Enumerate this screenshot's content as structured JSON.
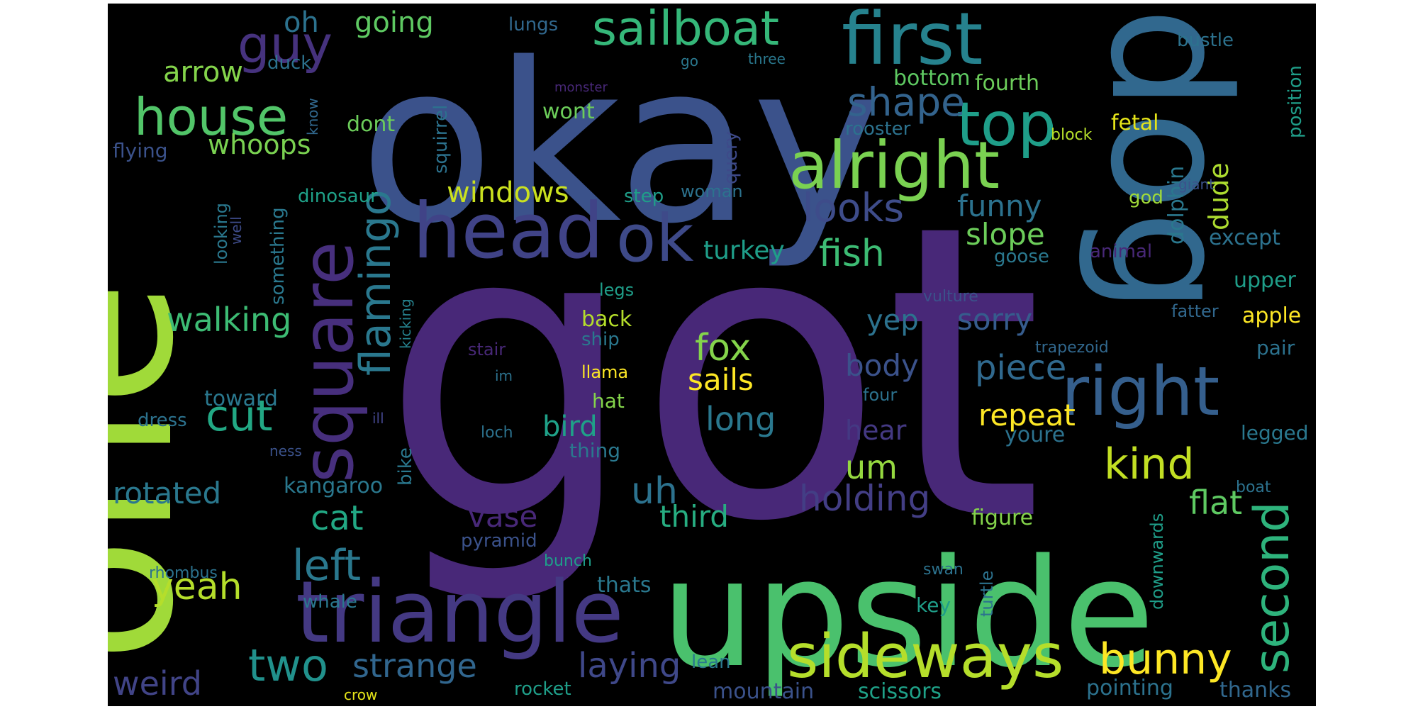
{
  "word_cloud": {
    "words": [
      {
        "text": "got",
        "color": "#482878"
      },
      {
        "text": "okay",
        "color": "#3b528b"
      },
      {
        "text": "one",
        "color": "#a0da39"
      },
      {
        "text": "upside",
        "color": "#4ac16d"
      },
      {
        "text": "dog",
        "color": "#31688e"
      },
      {
        "text": "triangle",
        "color": "#443983"
      },
      {
        "text": "first",
        "color": "#26828e"
      },
      {
        "text": "head",
        "color": "#404387"
      },
      {
        "text": "square",
        "color": "#472f7d"
      },
      {
        "text": "right",
        "color": "#355f8d"
      },
      {
        "text": "alright",
        "color": "#7ad151"
      },
      {
        "text": "sideways",
        "color": "#b5de2b"
      },
      {
        "text": "ok",
        "color": "#3e4a89"
      },
      {
        "text": "top",
        "color": "#1f9e89"
      },
      {
        "text": "sailboat",
        "color": "#35b779"
      },
      {
        "text": "guy",
        "color": "#46327e"
      },
      {
        "text": "house",
        "color": "#52c569"
      },
      {
        "text": "second",
        "color": "#2eb37c"
      },
      {
        "text": "flamingo",
        "color": "#2a788e"
      },
      {
        "text": "bunny",
        "color": "#fde725"
      },
      {
        "text": "left",
        "color": "#2a788e"
      },
      {
        "text": "two",
        "color": "#21918c"
      },
      {
        "text": "kind",
        "color": "#c2df23"
      },
      {
        "text": "cut",
        "color": "#22a884"
      },
      {
        "text": "laying",
        "color": "#3f4889"
      },
      {
        "text": "looks",
        "color": "#3e4c8a"
      },
      {
        "text": "shape",
        "color": "#33638d"
      },
      {
        "text": "fish",
        "color": "#3dbc74"
      },
      {
        "text": "holding",
        "color": "#433e85"
      },
      {
        "text": "piece",
        "color": "#30698e"
      },
      {
        "text": "uh",
        "color": "#2c728e"
      },
      {
        "text": "flat",
        "color": "#5ec962"
      },
      {
        "text": "weird",
        "color": "#414487"
      },
      {
        "text": "strange",
        "color": "#31668e"
      },
      {
        "text": "fox",
        "color": "#84d44b"
      },
      {
        "text": "yeah",
        "color": "#b5de2b"
      },
      {
        "text": "walking",
        "color": "#3dbc74"
      },
      {
        "text": "cat",
        "color": "#22a884"
      },
      {
        "text": "rotated",
        "color": "#2a788e"
      },
      {
        "text": "sails",
        "color": "#fde725"
      },
      {
        "text": "long",
        "color": "#2a788e"
      },
      {
        "text": "um",
        "color": "#95d840"
      },
      {
        "text": "slope",
        "color": "#6ccd5a"
      },
      {
        "text": "windows",
        "color": "#cae11f"
      },
      {
        "text": "arrow",
        "color": "#84d44b"
      },
      {
        "text": "going",
        "color": "#5ec962"
      },
      {
        "text": "oh",
        "color": "#2c728e"
      },
      {
        "text": "body",
        "color": "#3b528b"
      },
      {
        "text": "sorry",
        "color": "#365c8d"
      },
      {
        "text": "repeat",
        "color": "#fde725"
      },
      {
        "text": "whoops",
        "color": "#7ad151"
      },
      {
        "text": "funny",
        "color": "#2c728e"
      },
      {
        "text": "vase",
        "color": "#482878"
      },
      {
        "text": "third",
        "color": "#27ad81"
      },
      {
        "text": "turkey",
        "color": "#1f9e89"
      },
      {
        "text": "yep",
        "color": "#2c728e"
      },
      {
        "text": "bird",
        "color": "#1fa188"
      },
      {
        "text": "hear",
        "color": "#443983"
      },
      {
        "text": "dude",
        "color": "#addc30"
      },
      {
        "text": "mountain",
        "color": "#3b528b"
      },
      {
        "text": "scissors",
        "color": "#1fa188"
      },
      {
        "text": "thanks",
        "color": "#31688e"
      },
      {
        "text": "pointing",
        "color": "#2c728e"
      },
      {
        "text": "thats",
        "color": "#2a788e"
      },
      {
        "text": "kangaroo",
        "color": "#2a788e"
      },
      {
        "text": "toward",
        "color": "#2a788e"
      },
      {
        "text": "figure",
        "color": "#84d44b"
      },
      {
        "text": "apple",
        "color": "#fde725"
      },
      {
        "text": "youre",
        "color": "#2c728e"
      },
      {
        "text": "fourth",
        "color": "#6ccd5a"
      },
      {
        "text": "bottom",
        "color": "#5ec962"
      },
      {
        "text": "fetal",
        "color": "#e5e419"
      },
      {
        "text": "except",
        "color": "#2c728e"
      },
      {
        "text": "dolphin",
        "color": "#2a788e"
      },
      {
        "text": "upper",
        "color": "#1f9e89"
      },
      {
        "text": "pair",
        "color": "#2c728e"
      },
      {
        "text": "legged",
        "color": "#2a788e"
      },
      {
        "text": "position",
        "color": "#1f9e89"
      },
      {
        "text": "bustle",
        "color": "#2c728e"
      },
      {
        "text": "block",
        "color": "#b5de2b"
      },
      {
        "text": "god",
        "color": "#a0da39"
      },
      {
        "text": "giant",
        "color": "#3b528b"
      },
      {
        "text": "goose",
        "color": "#2a788e"
      },
      {
        "text": "animal",
        "color": "#482878"
      },
      {
        "text": "fatter",
        "color": "#31688e"
      },
      {
        "text": "vulture",
        "color": "#3b528b"
      },
      {
        "text": "trapezoid",
        "color": "#31688e"
      },
      {
        "text": "rooster",
        "color": "#2c728e"
      },
      {
        "text": "wont",
        "color": "#6ccd5a"
      },
      {
        "text": "dont",
        "color": "#6ccd5a"
      },
      {
        "text": "query",
        "color": "#3e4a89"
      },
      {
        "text": "woman",
        "color": "#2c728e"
      },
      {
        "text": "step",
        "color": "#1f9e89"
      },
      {
        "text": "dinosaur",
        "color": "#1fa188"
      },
      {
        "text": "squirrel",
        "color": "#2c728e"
      },
      {
        "text": "something",
        "color": "#2a788e"
      },
      {
        "text": "looking",
        "color": "#2a788e"
      },
      {
        "text": "well",
        "color": "#3e4c8a"
      },
      {
        "text": "know",
        "color": "#31688e"
      },
      {
        "text": "duck",
        "color": "#2c728e"
      },
      {
        "text": "flying",
        "color": "#3b528b"
      },
      {
        "text": "lungs",
        "color": "#31688e"
      },
      {
        "text": "monster",
        "color": "#482878"
      },
      {
        "text": "go",
        "color": "#2a788e"
      },
      {
        "text": "three",
        "color": "#2a788e"
      },
      {
        "text": "legs",
        "color": "#1f9e89"
      },
      {
        "text": "back",
        "color": "#b5de2b"
      },
      {
        "text": "ship",
        "color": "#2a788e"
      },
      {
        "text": "kicking",
        "color": "#26828e"
      },
      {
        "text": "stair",
        "color": "#482878"
      },
      {
        "text": "im",
        "color": "#2c728e"
      },
      {
        "text": "llama",
        "color": "#fde725"
      },
      {
        "text": "hat",
        "color": "#84d44b"
      },
      {
        "text": "thing",
        "color": "#2a788e"
      },
      {
        "text": "four",
        "color": "#2c728e"
      },
      {
        "text": "loch",
        "color": "#2c728e"
      },
      {
        "text": "ill",
        "color": "#404387"
      },
      {
        "text": "ness",
        "color": "#3b528b"
      },
      {
        "text": "bike",
        "color": "#2a788e"
      },
      {
        "text": "dress",
        "color": "#2c728e"
      },
      {
        "text": "pyramid",
        "color": "#3b528b"
      },
      {
        "text": "whale",
        "color": "#2a788e"
      },
      {
        "text": "rhombus",
        "color": "#2c728e"
      },
      {
        "text": "bunch",
        "color": "#1f9e89"
      },
      {
        "text": "key",
        "color": "#1f9e89"
      },
      {
        "text": "swan",
        "color": "#2c728e"
      },
      {
        "text": "turtle",
        "color": "#2c728e"
      },
      {
        "text": "downwards",
        "color": "#1f9e89"
      },
      {
        "text": "boat",
        "color": "#2c728e"
      },
      {
        "text": "lean",
        "color": "#2a788e"
      },
      {
        "text": "rocket",
        "color": "#1f9e89"
      },
      {
        "text": "crow",
        "color": "#e5e419"
      }
    ]
  }
}
